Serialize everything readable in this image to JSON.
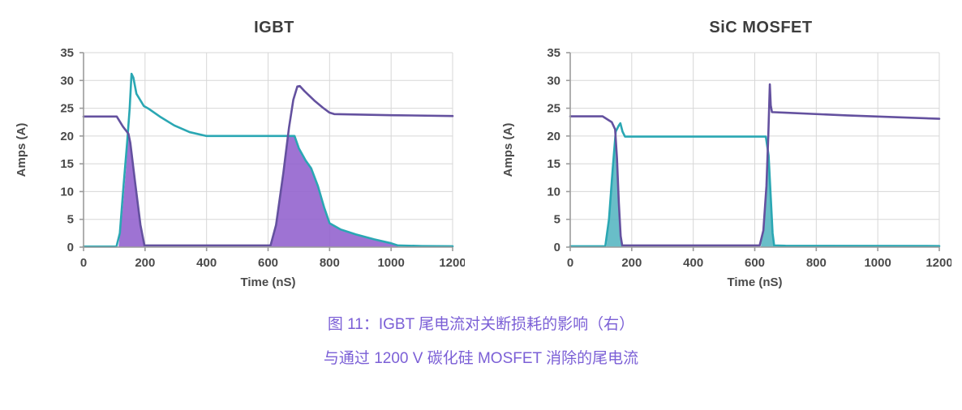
{
  "theme": {
    "background": "#ffffff",
    "grid": "#d7d7d7",
    "axis": "#9b9b9b",
    "tick_text": "#4a4a4a",
    "title_text": "#3d3d3d",
    "teal": "#2aa7b3",
    "purple": "#64519f",
    "purple_fill": "#9160cd",
    "teal_fill": "#4fb3be"
  },
  "caption": {
    "color": "#7b5fd6",
    "line1": "图 11：IGBT 尾电流对关断损耗的影响（右）",
    "line2": "与通过 1200 V 碳化硅 MOSFET 消除的尾电流"
  },
  "chart_data": [
    {
      "type": "line",
      "title": "IGBT",
      "xlabel": "Time (nS)",
      "ylabel": "Amps (A)",
      "xlim": [
        0,
        1200
      ],
      "ylim": [
        0,
        35
      ],
      "xticks": [
        0,
        200,
        400,
        600,
        800,
        1000,
        1200
      ],
      "yticks": [
        0,
        5,
        10,
        15,
        20,
        25,
        30,
        35
      ],
      "grid": true,
      "legend": "none",
      "fills": [
        {
          "name": "tail-current-loss-area-1",
          "color": "#9160cd",
          "opacity": 0.88,
          "points": [
            [
              114,
              0.2
            ],
            [
              126,
              6
            ],
            [
              138,
              14
            ],
            [
              146,
              20.4
            ],
            [
              152,
              18.8
            ],
            [
              168,
              11.5
            ],
            [
              185,
              4
            ],
            [
              198,
              0.2
            ]
          ]
        },
        {
          "name": "tail-current-loss-area-2",
          "color": "#9160cd",
          "opacity": 0.88,
          "points": [
            [
              610,
              0.2
            ],
            [
              626,
              4
            ],
            [
              650,
              13.5
            ],
            [
              666,
              20
            ],
            [
              686,
              20
            ],
            [
              700,
              17.8
            ],
            [
              722,
              15.6
            ],
            [
              740,
              14.2
            ],
            [
              762,
              11
            ],
            [
              782,
              7.2
            ],
            [
              800,
              4.3
            ],
            [
              835,
              3.2
            ],
            [
              885,
              2.3
            ],
            [
              945,
              1.4
            ],
            [
              1000,
              0.7
            ],
            [
              1022,
              0.3
            ]
          ]
        }
      ],
      "series": [
        {
          "name": "teal-waveform",
          "color": "#2aa7b3",
          "points": [
            [
              0,
              0.1
            ],
            [
              107,
              0.1
            ],
            [
              118,
              2.5
            ],
            [
              130,
              11
            ],
            [
              142,
              19
            ],
            [
              150,
              25
            ],
            [
              156,
              31.2
            ],
            [
              162,
              30.5
            ],
            [
              172,
              27.6
            ],
            [
              196,
              25.4
            ],
            [
              212,
              24.9
            ],
            [
              248,
              23.5
            ],
            [
              295,
              21.9
            ],
            [
              345,
              20.7
            ],
            [
              400,
              20
            ],
            [
              686,
              20
            ],
            [
              700,
              17.8
            ],
            [
              722,
              15.6
            ],
            [
              740,
              14.2
            ],
            [
              762,
              11
            ],
            [
              782,
              7.2
            ],
            [
              800,
              4.3
            ],
            [
              835,
              3.2
            ],
            [
              885,
              2.3
            ],
            [
              945,
              1.4
            ],
            [
              1000,
              0.7
            ],
            [
              1022,
              0.3
            ],
            [
              1100,
              0.2
            ],
            [
              1200,
              0.15
            ]
          ]
        },
        {
          "name": "purple-waveform",
          "color": "#64519f",
          "points": [
            [
              0,
              23.5
            ],
            [
              108,
              23.5
            ],
            [
              128,
              21.7
            ],
            [
              146,
              20.4
            ],
            [
              152,
              18.8
            ],
            [
              168,
              11.5
            ],
            [
              185,
              4
            ],
            [
              198,
              0.3
            ],
            [
              608,
              0.3
            ],
            [
              626,
              4
            ],
            [
              650,
              13.5
            ],
            [
              668,
              21.5
            ],
            [
              682,
              26.5
            ],
            [
              695,
              28.9
            ],
            [
              703,
              29
            ],
            [
              718,
              28.1
            ],
            [
              750,
              26.4
            ],
            [
              778,
              25.1
            ],
            [
              800,
              24.2
            ],
            [
              815,
              23.95
            ],
            [
              1000,
              23.75
            ],
            [
              1200,
              23.6
            ]
          ]
        }
      ]
    },
    {
      "type": "line",
      "title": "SiC MOSFET",
      "xlabel": "Time (nS)",
      "ylabel": "Amps (A)",
      "xlim": [
        0,
        1200
      ],
      "ylim": [
        0,
        35
      ],
      "xticks": [
        0,
        200,
        400,
        600,
        800,
        1000,
        1200
      ],
      "yticks": [
        0,
        5,
        10,
        15,
        20,
        25,
        30,
        35
      ],
      "grid": true,
      "legend": "none",
      "fills": [
        {
          "name": "switching-overlap-area-1",
          "color": "#4fb3be",
          "opacity": 0.85,
          "points": [
            [
              118,
              0.2
            ],
            [
              128,
              6
            ],
            [
              140,
              15
            ],
            [
              148,
              20.9
            ],
            [
              152,
              16
            ],
            [
              158,
              8
            ],
            [
              164,
              2
            ],
            [
              169,
              0.2
            ]
          ]
        },
        {
          "name": "switching-overlap-area-2",
          "color": "#4fb3be",
          "opacity": 0.85,
          "points": [
            [
              620,
              0.2
            ],
            [
              630,
              4
            ],
            [
              639,
              12
            ],
            [
              645,
              18
            ],
            [
              650,
              12
            ],
            [
              655,
              6
            ],
            [
              660,
              1.5
            ],
            [
              663,
              0.2
            ]
          ]
        }
      ],
      "series": [
        {
          "name": "teal-waveform",
          "color": "#2aa7b3",
          "points": [
            [
              0,
              0.15
            ],
            [
              114,
              0.15
            ],
            [
              126,
              5
            ],
            [
              138,
              14
            ],
            [
              148,
              20.8
            ],
            [
              158,
              21.9
            ],
            [
              163,
              22.3
            ],
            [
              170,
              20.8
            ],
            [
              178,
              19.9
            ],
            [
              636,
              19.9
            ],
            [
              645,
              16.5
            ],
            [
              652,
              9
            ],
            [
              658,
              2.5
            ],
            [
              663,
              0.3
            ],
            [
              700,
              0.25
            ],
            [
              1200,
              0.2
            ]
          ]
        },
        {
          "name": "purple-waveform",
          "color": "#64519f",
          "points": [
            [
              0,
              23.55
            ],
            [
              105,
              23.55
            ],
            [
              135,
              22.5
            ],
            [
              146,
              21.2
            ],
            [
              152,
              16
            ],
            [
              158,
              8
            ],
            [
              164,
              2
            ],
            [
              169,
              0.3
            ],
            [
              616,
              0.3
            ],
            [
              628,
              3
            ],
            [
              638,
              11
            ],
            [
              644,
              20
            ],
            [
              649,
              29.3
            ],
            [
              652,
              25.5
            ],
            [
              656,
              24.3
            ],
            [
              700,
              24.2
            ],
            [
              900,
              23.7
            ],
            [
              1200,
              23.1
            ]
          ]
        }
      ]
    }
  ]
}
